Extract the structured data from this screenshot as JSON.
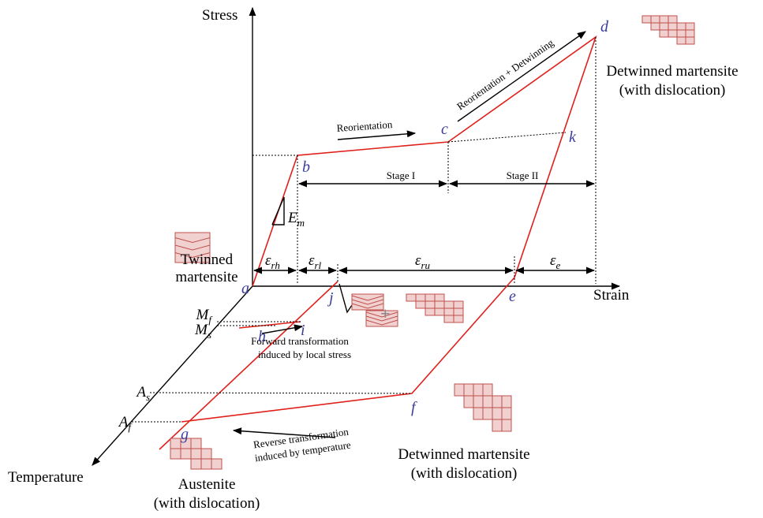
{
  "axes": {
    "stress": "Stress",
    "strain": "Strain",
    "temperature": "Temperature"
  },
  "points": [
    "a",
    "b",
    "c",
    "d",
    "e",
    "f",
    "g",
    "h",
    "i",
    "j",
    "k"
  ],
  "modulus": {
    "symbol": "E",
    "sub": "m"
  },
  "strains": [
    {
      "symbol": "ε",
      "sub": "rh"
    },
    {
      "symbol": "ε",
      "sub": "rl"
    },
    {
      "symbol": "ε",
      "sub": "ru"
    },
    {
      "symbol": "ε",
      "sub": "e"
    }
  ],
  "temperatures": [
    {
      "symbol": "M",
      "sub": "f"
    },
    {
      "symbol": "M",
      "sub": "s"
    },
    {
      "symbol": "A",
      "sub": "s"
    },
    {
      "symbol": "A",
      "sub": "f"
    }
  ],
  "stages": [
    "Stage I",
    "Stage II"
  ],
  "arrows": [
    "Reorientation",
    "Reorientation + Detwinning"
  ],
  "transformations": {
    "forward": [
      "Forward transformation",
      "induced by local stress"
    ],
    "reverse": [
      "Reverse transformation",
      "induced by temperature"
    ]
  },
  "phases": {
    "twinned": [
      "Twinned",
      "martensite"
    ],
    "detwinned_top": [
      "Detwinned martensite",
      "(with dislocation)"
    ],
    "detwinned_bottom": [
      "Detwinned martensite",
      "(with dislocation)"
    ],
    "austenite": [
      "Austenite",
      "(with dislocation)"
    ]
  },
  "plus": "+"
}
